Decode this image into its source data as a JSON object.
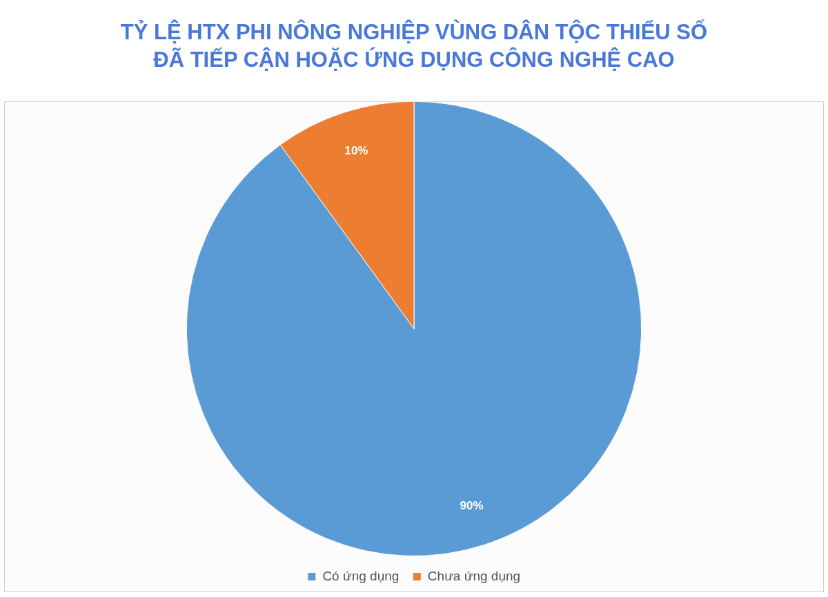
{
  "chart_data": {
    "type": "pie",
    "title": "TỶ LỆ HTX PHI NÔNG NGHIỆP VÙNG DÂN TỘC THIỂU SỐ\nĐÃ TIẾP CẬN HOẶC ỨNG DỤNG CÔNG NGHỆ CAO",
    "categories": [
      "Có ứng dụng",
      "Chưa ứng dụng"
    ],
    "values": [
      90,
      10
    ],
    "colors": [
      "#5b9bd5",
      "#ed7d31"
    ],
    "value_labels": [
      "90%",
      "10%"
    ],
    "legend": "bottom"
  }
}
